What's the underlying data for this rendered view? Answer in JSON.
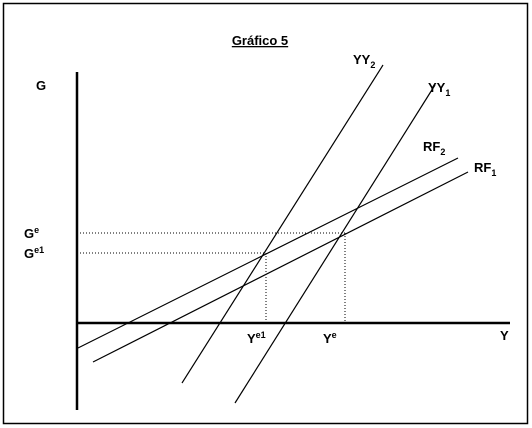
{
  "title": "Gráfico 5",
  "axes": {
    "vertical": "G",
    "horizontal": "Y"
  },
  "curves": [
    {
      "base": "YY",
      "sub": "2"
    },
    {
      "base": "YY",
      "sub": "1"
    },
    {
      "base": "RF",
      "sub": "2"
    },
    {
      "base": "RF",
      "sub": "1"
    }
  ],
  "g_levels": [
    {
      "base": "G",
      "sup": "e"
    },
    {
      "base": "G",
      "sup": "e1"
    }
  ],
  "y_levels": [
    {
      "base": "Y",
      "sup": "e1"
    },
    {
      "base": "Y",
      "sup": "e"
    }
  ]
}
